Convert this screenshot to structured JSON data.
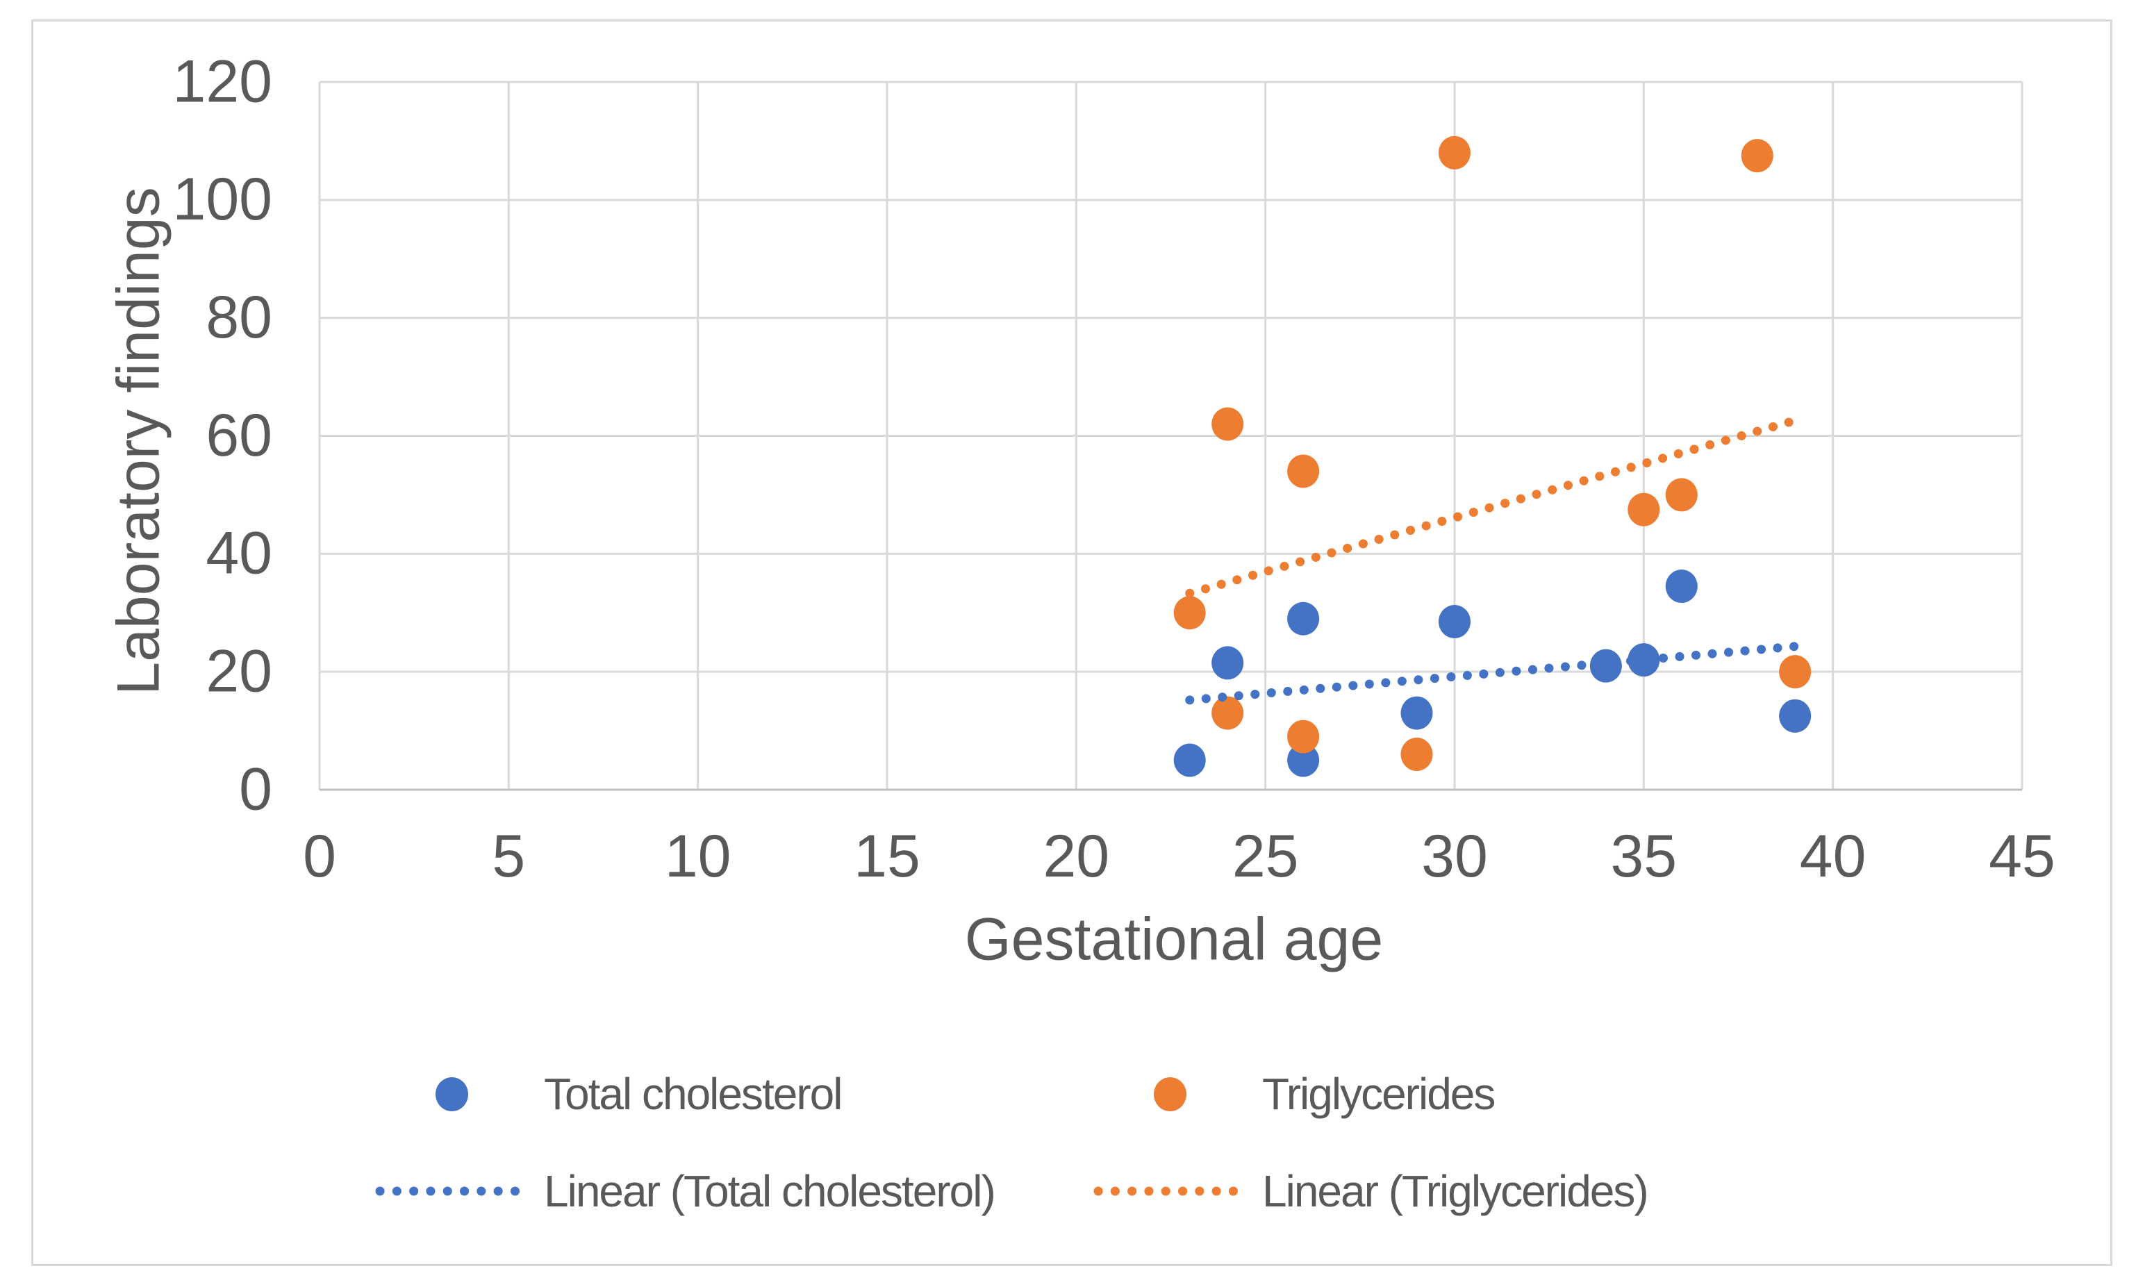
{
  "chart": {
    "background": "#FFFFFF",
    "border_color": "#D9D9D9",
    "gridline_color": "#D9D9D9",
    "axis_line_color": "#BFBFBF",
    "text_color": "#595959"
  },
  "chart_data": {
    "type": "scatter",
    "title": "",
    "xlabel": "Gestational age",
    "ylabel": "Laboratory findings",
    "xlim": [
      0,
      45
    ],
    "ylim": [
      0,
      120
    ],
    "x_ticks": [
      0,
      5,
      10,
      15,
      20,
      25,
      30,
      35,
      40,
      45
    ],
    "y_ticks": [
      0,
      20,
      40,
      60,
      80,
      100,
      120
    ],
    "grid": true,
    "legend_position": "bottom",
    "series": [
      {
        "name": "Total cholesterol",
        "color": "#4472C4",
        "points": [
          [
            23,
            5
          ],
          [
            24,
            21.5
          ],
          [
            26,
            29
          ],
          [
            26,
            5
          ],
          [
            29,
            13
          ],
          [
            30,
            28.5
          ],
          [
            34,
            21
          ],
          [
            35,
            22
          ],
          [
            36,
            34.5
          ],
          [
            39,
            12.5
          ]
        ]
      },
      {
        "name": "Triglycerides",
        "color": "#ED7D31",
        "points": [
          [
            23,
            30
          ],
          [
            24,
            62
          ],
          [
            24,
            13
          ],
          [
            26,
            54
          ],
          [
            26,
            9
          ],
          [
            29,
            6
          ],
          [
            30,
            108
          ],
          [
            35,
            47.5
          ],
          [
            36,
            50
          ],
          [
            38,
            107.5
          ],
          [
            39,
            20
          ]
        ]
      }
    ],
    "trendlines": [
      {
        "name": "Linear (Total cholesterol)",
        "color": "#4472C4",
        "x1": 23,
        "y1": 15.2,
        "x2": 39,
        "y2": 24.3
      },
      {
        "name": "Linear (Triglycerides)",
        "color": "#ED7D31",
        "x1": 23,
        "y1": 33.3,
        "x2": 39,
        "y2": 62.6
      }
    ]
  }
}
